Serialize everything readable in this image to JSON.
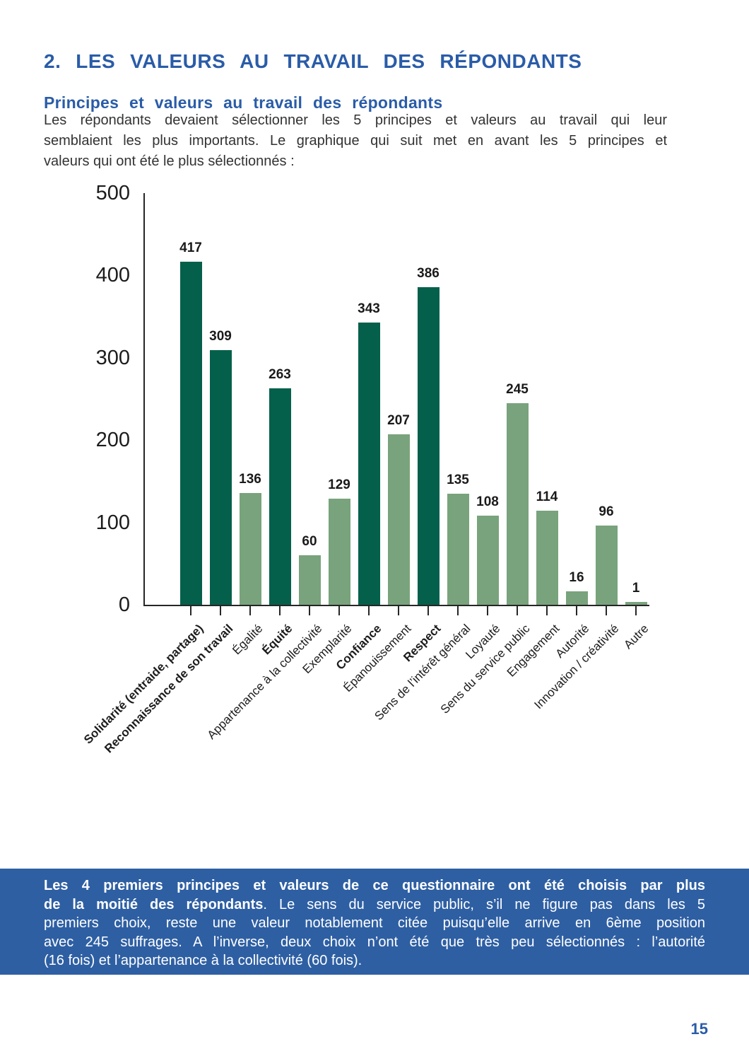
{
  "page": {
    "section_title": "2. LES VALEURS AU TRAVAIL DES RÉPONDANTS",
    "subsection_title": "Principes et valeurs au travail des répondants",
    "intro_lines": [
      "Les répondants devaient sélectionner les 5 principes et valeurs au travail qui leur",
      "semblaient les plus importants. Le graphique qui suit met en avant les 5 principes et",
      "valeurs qui ont été le plus sélectionnés :"
    ],
    "page_number": "15"
  },
  "chart_data": {
    "type": "bar",
    "title": "",
    "xlabel": "",
    "ylabel": "",
    "categories": [
      "Solidarité (entraide, partage)",
      "Reconnaissance de son travail",
      "Égalité",
      "Équité",
      "Appartenance à la collectivité",
      "Exemplarité",
      "Confiance",
      "Épanouissement",
      "Respect",
      "Sens de l’intérêt général",
      "Loyauté",
      "Sens du service public",
      "Engagement",
      "Autorité",
      "Innovation / créativité",
      "Autre"
    ],
    "values": [
      417,
      309,
      136,
      263,
      60,
      129,
      343,
      207,
      386,
      135,
      108,
      245,
      114,
      16,
      96,
      1
    ],
    "highlighted": [
      true,
      true,
      false,
      true,
      false,
      false,
      true,
      false,
      true,
      false,
      false,
      false,
      false,
      false,
      false,
      false
    ],
    "ylim": [
      0,
      500
    ],
    "yticks": [
      0,
      100,
      200,
      300,
      400,
      500
    ],
    "grid": false,
    "legend": "none",
    "colors": {
      "highlight_bar": "#05604B",
      "normal_bar": "#79A37C",
      "axis": "#262626"
    }
  },
  "callout": {
    "background": "#2E5FA3",
    "lines": [
      [
        {
          "text": "Les 4 premiers principes et valeurs de ce questionnaire ont été choisis par plus",
          "bold": true
        }
      ],
      [
        {
          "text": "de la moitié des répondants",
          "bold": true
        },
        {
          "text": ". Le sens du service public, s’il ne figure pas dans les 5",
          "bold": false
        }
      ],
      [
        {
          "text": "premiers choix, reste une valeur notablement citée puisqu’elle arrive en 6ème position",
          "bold": false
        }
      ],
      [
        {
          "text": "avec 245 suffrages. A l’inverse, deux choix n’ont été que très peu sélectionnés : l’autorité",
          "bold": false
        }
      ],
      [
        {
          "text": "(16 fois) et l’appartenance à la collectivité (60 fois).",
          "bold": false
        }
      ]
    ]
  }
}
